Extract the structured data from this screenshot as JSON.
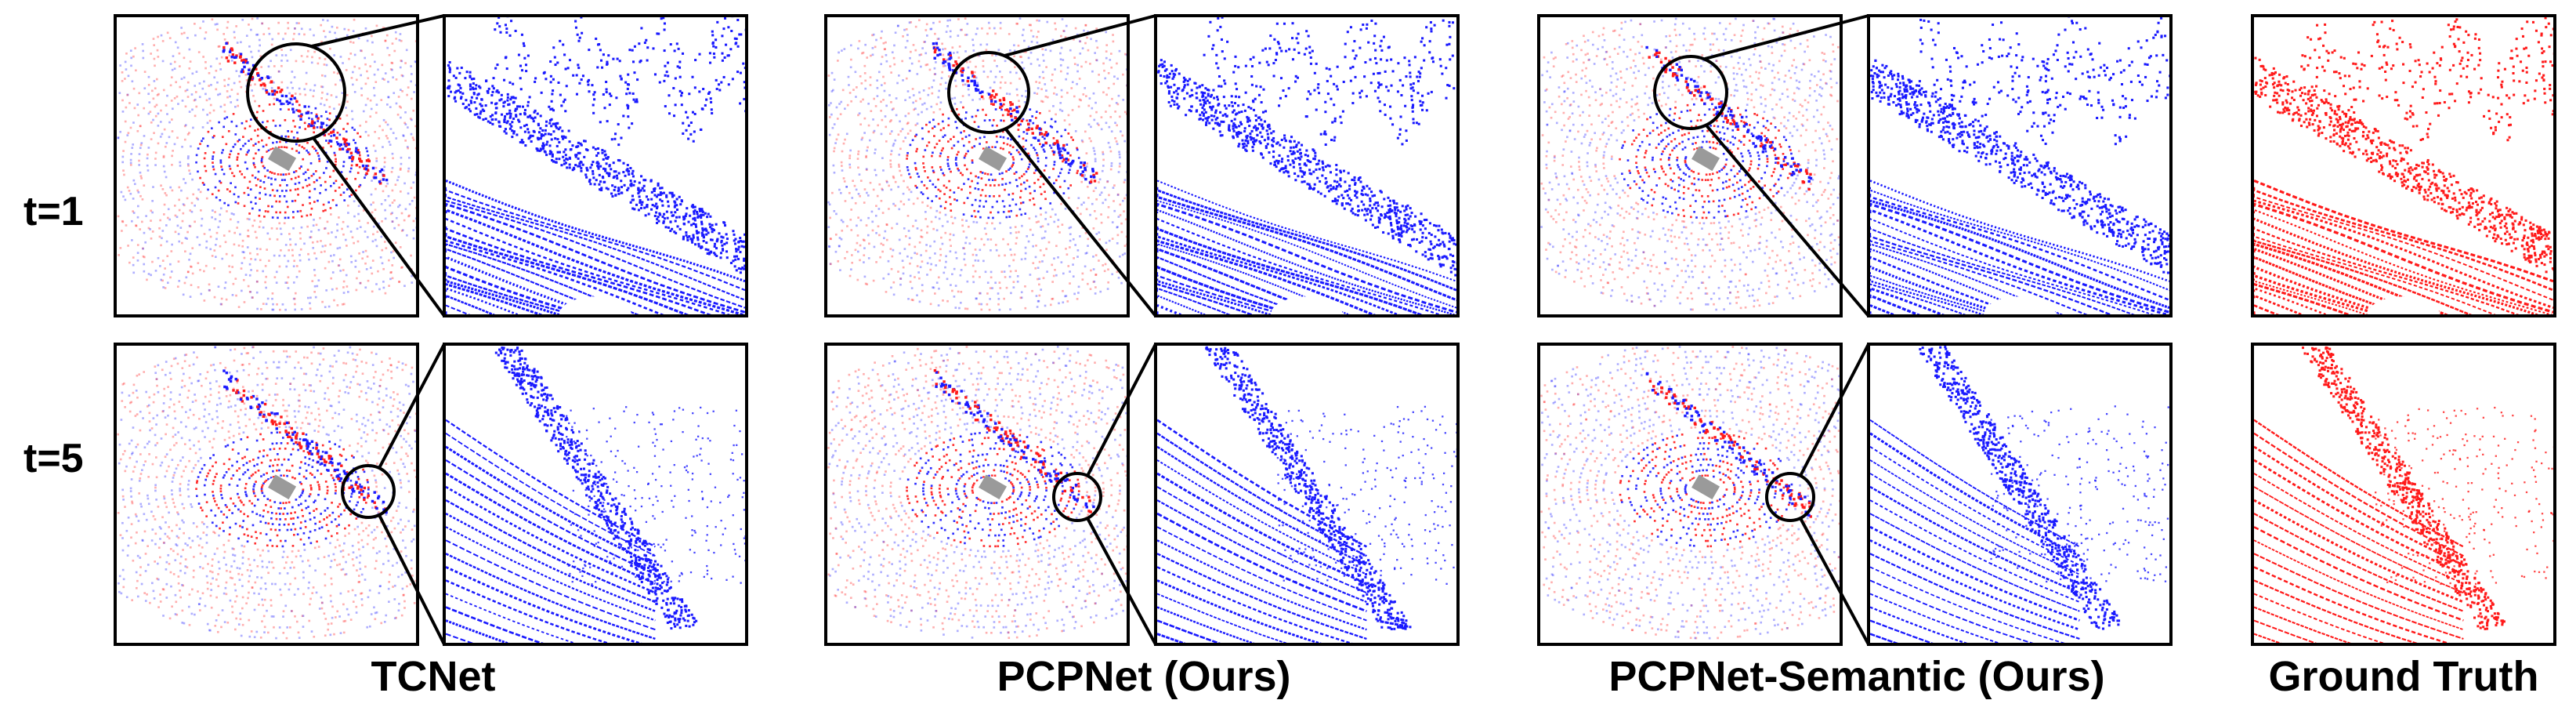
{
  "figure": {
    "row_labels": [
      "t=1",
      "t=5"
    ],
    "methods": [
      {
        "name": "TCNet",
        "points_color": "#1a1aff",
        "overview_mix": [
          "#1a1aff",
          "#ff2020"
        ]
      },
      {
        "name": "PCPNet (Ours)",
        "points_color": "#1a1aff",
        "overview_mix": [
          "#1a1aff",
          "#ff2020"
        ]
      },
      {
        "name": "PCPNet-Semantic (Ours)",
        "points_color": "#1a1aff",
        "overview_mix": [
          "#1a1aff",
          "#ff2020"
        ]
      },
      {
        "name": "Ground Truth",
        "points_color": "#ff1a1a"
      }
    ],
    "colors": {
      "prediction": "#1a1aff",
      "ground_truth": "#ff1a1a",
      "frame": "#000000",
      "ego_vehicle": "#9a9a9a"
    }
  }
}
